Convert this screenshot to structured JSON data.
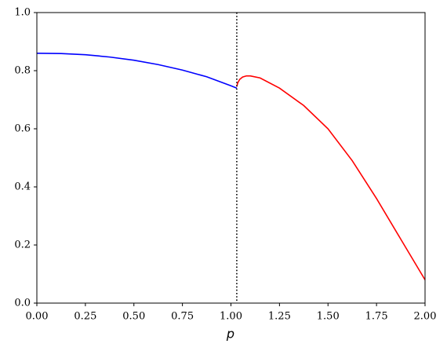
{
  "chart_data": {
    "type": "line",
    "xlabel": "p",
    "series": [
      {
        "color": "#0000ff",
        "x": [
          0,
          0.125,
          0.25,
          0.375,
          0.5,
          0.625,
          0.75,
          0.875,
          1.0,
          1.03
        ],
        "values": [
          0.86,
          0.859,
          0.855,
          0.847,
          0.836,
          0.821,
          0.802,
          0.779,
          0.748,
          0.74
        ]
      },
      {
        "color": "#ff0000",
        "x": [
          1.03,
          1.035,
          1.045,
          1.06,
          1.08,
          1.1,
          1.15,
          1.25,
          1.375,
          1.5,
          1.625,
          1.75,
          1.875,
          2.0
        ],
        "values": [
          0.745,
          0.758,
          0.77,
          0.778,
          0.782,
          0.782,
          0.775,
          0.74,
          0.68,
          0.6,
          0.49,
          0.36,
          0.22,
          0.08
        ]
      }
    ],
    "reference_line": {
      "x": 1.03,
      "color": "#000000",
      "style": "dotted"
    },
    "xlim": [
      0,
      2
    ],
    "xticks": [
      {
        "value": 0,
        "label": "0.00"
      },
      0.25,
      {
        "value": 0.5,
        "label": "0.50"
      },
      0.75,
      {
        "value": 1,
        "label": "1.00"
      },
      1.25,
      {
        "value": 1.5,
        "label": "1.50"
      },
      1.75,
      {
        "value": 2,
        "label": "2.00"
      }
    ],
    "ylim": [
      0,
      1
    ],
    "yticks": [
      {
        "value": 0,
        "label": "0.0"
      },
      0.2,
      0.4,
      0.6,
      0.8,
      {
        "value": 1,
        "label": "1.0"
      }
    ],
    "grid": false
  }
}
